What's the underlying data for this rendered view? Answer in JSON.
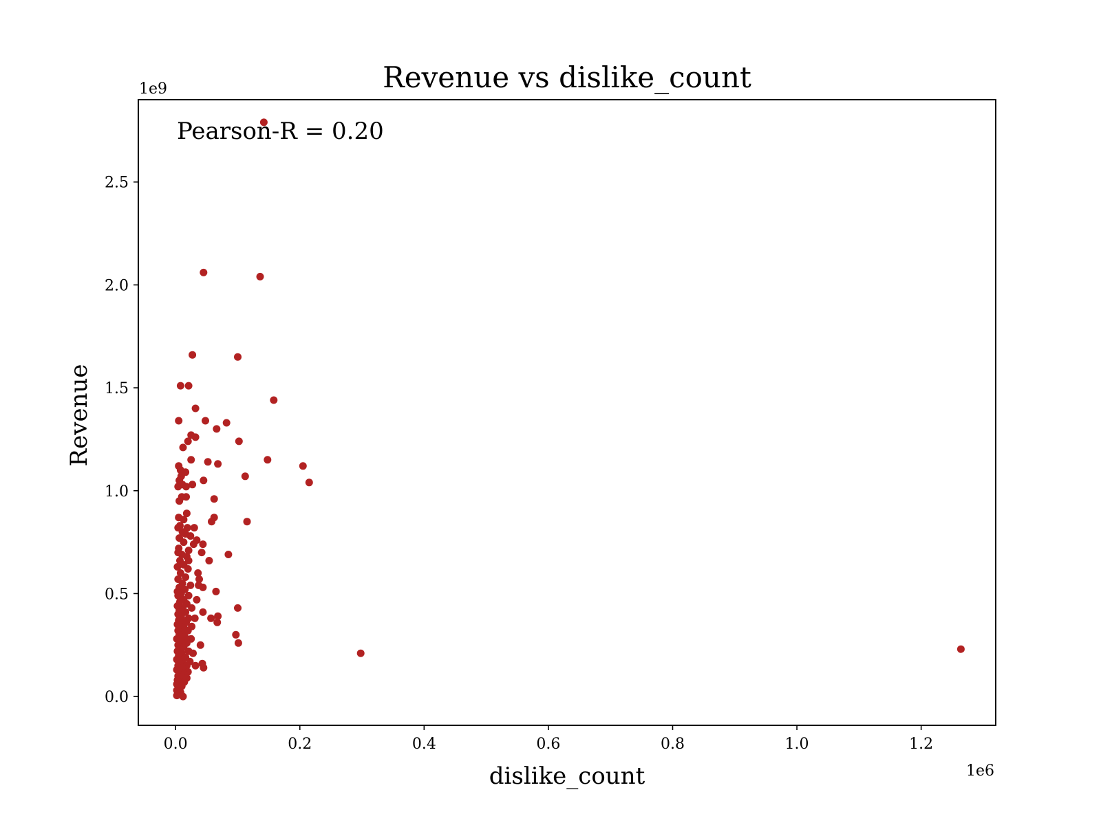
{
  "chart_data": {
    "type": "scatter",
    "title": "Revenue vs dislike_count",
    "xlabel": "dislike_count",
    "ylabel": "Revenue",
    "x_multiplier_label": "1e6",
    "y_multiplier_label": "1e9",
    "annotation": "Pearson-R = 0.20",
    "xlim": [
      -0.06,
      1.32
    ],
    "ylim": [
      -0.14,
      2.9
    ],
    "xticks": [
      0.0,
      0.2,
      0.4,
      0.6,
      0.8,
      1.0,
      1.2
    ],
    "xtick_labels": [
      "0.0",
      "0.2",
      "0.4",
      "0.6",
      "0.8",
      "1.0",
      "1.2"
    ],
    "yticks": [
      0.0,
      0.5,
      1.0,
      1.5,
      2.0,
      2.5
    ],
    "ytick_labels": [
      "0.0",
      "0.5",
      "1.0",
      "1.5",
      "2.0",
      "2.5"
    ],
    "grid": false,
    "point_color": "#b22222",
    "points": [
      [
        0.142,
        2.79
      ],
      [
        0.045,
        2.06
      ],
      [
        0.136,
        2.04
      ],
      [
        0.027,
        1.66
      ],
      [
        0.1,
        1.65
      ],
      [
        0.008,
        1.51
      ],
      [
        0.021,
        1.51
      ],
      [
        0.158,
        1.44
      ],
      [
        0.032,
        1.4
      ],
      [
        0.005,
        1.34
      ],
      [
        0.048,
        1.34
      ],
      [
        0.082,
        1.33
      ],
      [
        0.066,
        1.3
      ],
      [
        0.025,
        1.27
      ],
      [
        0.032,
        1.26
      ],
      [
        0.02,
        1.24
      ],
      [
        0.102,
        1.24
      ],
      [
        0.012,
        1.21
      ],
      [
        0.148,
        1.15
      ],
      [
        0.025,
        1.15
      ],
      [
        0.052,
        1.14
      ],
      [
        0.068,
        1.13
      ],
      [
        0.205,
        1.12
      ],
      [
        0.005,
        1.12
      ],
      [
        0.008,
        1.1
      ],
      [
        0.016,
        1.09
      ],
      [
        0.112,
        1.07
      ],
      [
        0.009,
        1.07
      ],
      [
        0.006,
        1.05
      ],
      [
        0.045,
        1.05
      ],
      [
        0.215,
        1.04
      ],
      [
        0.027,
        1.03
      ],
      [
        0.011,
        1.03
      ],
      [
        0.004,
        1.02
      ],
      [
        0.017,
        1.02
      ],
      [
        0.01,
        0.97
      ],
      [
        0.017,
        0.97
      ],
      [
        0.006,
        0.95
      ],
      [
        0.062,
        0.96
      ],
      [
        0.018,
        0.89
      ],
      [
        0.005,
        0.87
      ],
      [
        0.062,
        0.87
      ],
      [
        0.013,
        0.86
      ],
      [
        0.058,
        0.85
      ],
      [
        0.115,
        0.85
      ],
      [
        0.007,
        0.83
      ],
      [
        0.019,
        0.82
      ],
      [
        0.03,
        0.82
      ],
      [
        0.004,
        0.82
      ],
      [
        0.011,
        0.8
      ],
      [
        0.016,
        0.79
      ],
      [
        0.024,
        0.78
      ],
      [
        0.006,
        0.77
      ],
      [
        0.034,
        0.76
      ],
      [
        0.013,
        0.75
      ],
      [
        0.029,
        0.74
      ],
      [
        0.044,
        0.74
      ],
      [
        0.005,
        0.72
      ],
      [
        0.021,
        0.71
      ],
      [
        0.042,
        0.7
      ],
      [
        0.004,
        0.7
      ],
      [
        0.085,
        0.69
      ],
      [
        0.01,
        0.69
      ],
      [
        0.018,
        0.68
      ],
      [
        0.007,
        0.66
      ],
      [
        0.054,
        0.66
      ],
      [
        0.021,
        0.66
      ],
      [
        0.013,
        0.64
      ],
      [
        0.003,
        0.63
      ],
      [
        0.02,
        0.62
      ],
      [
        0.008,
        0.6
      ],
      [
        0.036,
        0.6
      ],
      [
        0.016,
        0.58
      ],
      [
        0.004,
        0.57
      ],
      [
        0.038,
        0.57
      ],
      [
        0.011,
        0.55
      ],
      [
        0.024,
        0.54
      ],
      [
        0.037,
        0.54
      ],
      [
        0.006,
        0.53
      ],
      [
        0.044,
        0.53
      ],
      [
        0.015,
        0.52
      ],
      [
        0.003,
        0.51
      ],
      [
        0.065,
        0.51
      ],
      [
        0.009,
        0.5
      ],
      [
        0.021,
        0.49
      ],
      [
        0.004,
        0.49
      ],
      [
        0.013,
        0.47
      ],
      [
        0.034,
        0.47
      ],
      [
        0.007,
        0.46
      ],
      [
        0.018,
        0.45
      ],
      [
        0.003,
        0.44
      ],
      [
        0.1,
        0.43
      ],
      [
        0.011,
        0.43
      ],
      [
        0.026,
        0.43
      ],
      [
        0.006,
        0.42
      ],
      [
        0.016,
        0.41
      ],
      [
        0.044,
        0.41
      ],
      [
        0.004,
        0.4
      ],
      [
        0.009,
        0.39
      ],
      [
        0.068,
        0.39
      ],
      [
        0.021,
        0.38
      ],
      [
        0.031,
        0.38
      ],
      [
        0.057,
        0.38
      ],
      [
        0.005,
        0.37
      ],
      [
        0.012,
        0.37
      ],
      [
        0.067,
        0.36
      ],
      [
        0.017,
        0.36
      ],
      [
        0.003,
        0.35
      ],
      [
        0.008,
        0.34
      ],
      [
        0.026,
        0.34
      ],
      [
        0.014,
        0.33
      ],
      [
        0.004,
        0.32
      ],
      [
        0.02,
        0.32
      ],
      [
        0.01,
        0.31
      ],
      [
        0.097,
        0.3
      ],
      [
        0.006,
        0.3
      ],
      [
        0.015,
        0.29
      ],
      [
        0.002,
        0.28
      ],
      [
        0.025,
        0.28
      ],
      [
        0.009,
        0.27
      ],
      [
        0.018,
        0.26
      ],
      [
        0.101,
        0.26
      ],
      [
        0.004,
        0.25
      ],
      [
        0.04,
        0.25
      ],
      [
        0.013,
        0.24
      ],
      [
        0.007,
        0.23
      ],
      [
        0.021,
        0.22
      ],
      [
        0.003,
        0.22
      ],
      [
        1.264,
        0.23
      ],
      [
        0.298,
        0.21
      ],
      [
        0.01,
        0.21
      ],
      [
        0.028,
        0.21
      ],
      [
        0.005,
        0.2
      ],
      [
        0.016,
        0.19
      ],
      [
        0.002,
        0.18
      ],
      [
        0.012,
        0.18
      ],
      [
        0.023,
        0.17
      ],
      [
        0.008,
        0.16
      ],
      [
        0.043,
        0.16
      ],
      [
        0.004,
        0.15
      ],
      [
        0.018,
        0.15
      ],
      [
        0.032,
        0.15
      ],
      [
        0.011,
        0.14
      ],
      [
        0.045,
        0.14
      ],
      [
        0.002,
        0.13
      ],
      [
        0.007,
        0.12
      ],
      [
        0.02,
        0.12
      ],
      [
        0.014,
        0.11
      ],
      [
        0.004,
        0.1
      ],
      [
        0.01,
        0.09
      ],
      [
        0.018,
        0.09
      ],
      [
        0.003,
        0.08
      ],
      [
        0.007,
        0.07
      ],
      [
        0.014,
        0.07
      ],
      [
        0.002,
        0.06
      ],
      [
        0.01,
        0.05
      ],
      [
        0.005,
        0.04
      ],
      [
        0.002,
        0.03
      ],
      [
        0.008,
        0.02
      ],
      [
        0.004,
        0.01
      ],
      [
        0.012,
        0.0
      ],
      [
        0.002,
        0.005
      ]
    ]
  }
}
